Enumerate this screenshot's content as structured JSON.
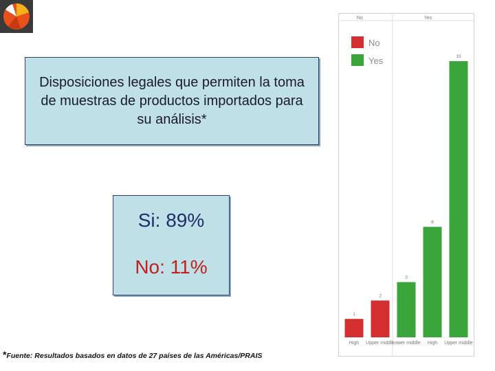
{
  "logo": {
    "icon": "pie-logo-icon",
    "colors": [
      "#e8501c",
      "#f6b11a",
      "#ffffff",
      "#3a3a3a"
    ]
  },
  "title": "Disposiciones legales que permiten la toma de muestras de productos importados para su análisis*",
  "stats": {
    "si": "Si: 89%",
    "no": "No: 11%"
  },
  "footnote": {
    "marker": "*",
    "text": "Fuente: Resultados basados en datos de 27 países de las Américas/PRAIS"
  },
  "chart_data": {
    "type": "bar",
    "facets": [
      "No",
      "Yes"
    ],
    "categories": [
      "High",
      "Upper middle",
      "Lower middle",
      "High",
      "Upper middle"
    ],
    "facet_of_category": [
      "No",
      "No",
      "Yes",
      "Yes",
      "Yes"
    ],
    "values": [
      1,
      2,
      3,
      6,
      15
    ],
    "data_labels": [
      "1",
      "2",
      "3",
      "6",
      "15"
    ],
    "legend": [
      {
        "label": "No",
        "color": "#d32f2f"
      },
      {
        "label": "Yes",
        "color": "#3aa53a"
      }
    ],
    "legend_position": "top-left",
    "ylim": [
      0,
      16
    ],
    "grid": false,
    "title": "",
    "xlabel": "",
    "ylabel": ""
  }
}
